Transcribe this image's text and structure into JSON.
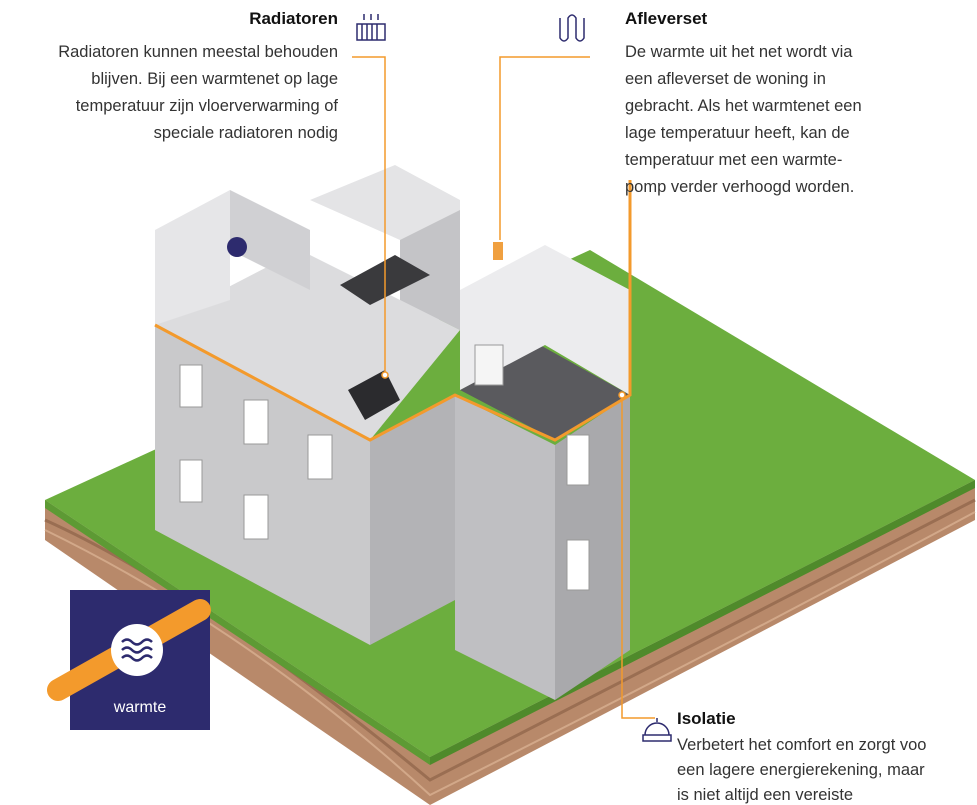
{
  "annotations": [
    {
      "title": "Radiatoren",
      "lines": [
        "Radiatoren kunnen meestal behouden",
        "blijven. Bij een warmtenet op lage",
        "temperatuur zijn vloerverwarming of",
        "speciale radiatoren nodig"
      ]
    },
    {
      "title": "Afleverset",
      "lines": [
        "De warmte uit het net wordt via",
        "een afleverset de woning in",
        "gebracht. Als het warmtenet een",
        "lage temperatuur heeft, kan de",
        "temperatuur met een warmte-",
        "pomp verder verhoogd worden."
      ]
    },
    {
      "title": "Isolatie",
      "lines": [
        "Verbetert het comfort en zorgt voo",
        "een lagere energierekening, maar",
        "is niet altijd een vereiste"
      ]
    }
  ],
  "pipe_label": "warmte"
}
